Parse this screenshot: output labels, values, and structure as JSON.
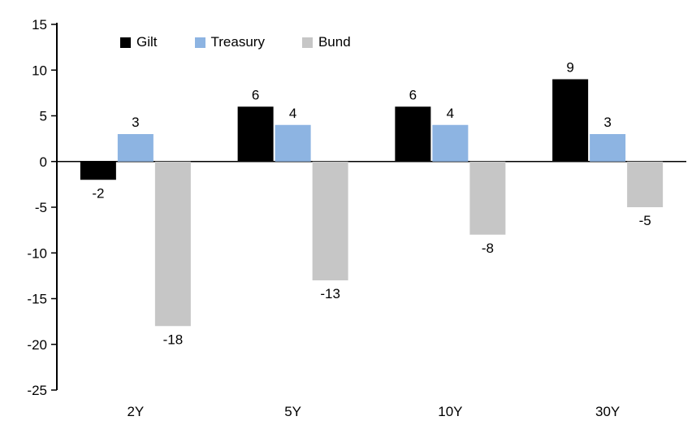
{
  "chart_data": {
    "type": "bar",
    "title": "",
    "categories": [
      "2Y",
      "5Y",
      "10Y",
      "30Y"
    ],
    "series": [
      {
        "name": "Gilt",
        "color": "#000000",
        "values": [
          -2,
          6,
          6,
          9
        ]
      },
      {
        "name": "Treasury",
        "color": "#8DB4E2",
        "values": [
          3,
          4,
          4,
          3
        ]
      },
      {
        "name": "Bund",
        "color": "#C6C6C6",
        "values": [
          -18,
          -13,
          -8,
          -5
        ]
      }
    ],
    "ylim": [
      -25,
      15
    ],
    "ytick_step": 5,
    "grid": false,
    "legend_position": "top",
    "axis_color": "#000000"
  }
}
